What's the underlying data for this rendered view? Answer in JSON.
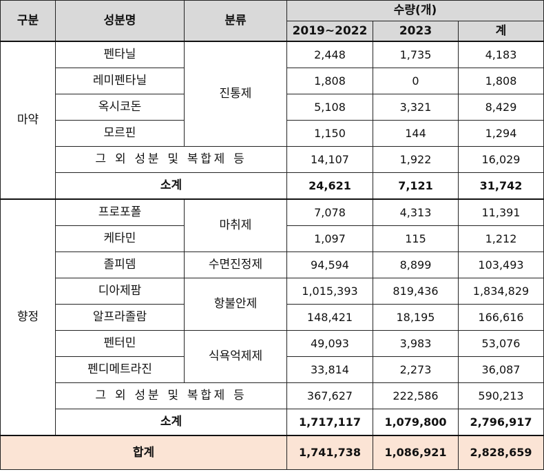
{
  "header": {
    "category": "구분",
    "ingredient": "성분명",
    "classification": "분류",
    "quantity": "수량(개)",
    "col_2019_2022": "2019~2022",
    "col_2023": "2023",
    "col_total": "계"
  },
  "narcotics": {
    "label": "마약",
    "class_analgesic": "진통제",
    "rows": [
      {
        "name": "펜타닐",
        "v1": "2,448",
        "v2": "1,735",
        "v3": "4,183"
      },
      {
        "name": "레미펜타닐",
        "v1": "1,808",
        "v2": "0",
        "v3": "1,808"
      },
      {
        "name": "옥시코돈",
        "v1": "5,108",
        "v2": "3,321",
        "v3": "8,429"
      },
      {
        "name": "모르핀",
        "v1": "1,150",
        "v2": "144",
        "v3": "1,294"
      }
    ],
    "other": {
      "name": "그 외 성분 및 복합제 등",
      "v1": "14,107",
      "v2": "1,922",
      "v3": "16,029"
    },
    "subtotal": {
      "label": "소계",
      "v1": "24,621",
      "v2": "7,121",
      "v3": "31,742"
    }
  },
  "psychotropics": {
    "label": "향정",
    "class_anesthetic": "마취제",
    "class_sedative": "수면진정제",
    "class_anxiolytic": "항불안제",
    "class_appetite": "식욕억제제",
    "rows": [
      {
        "name": "프로포폴",
        "v1": "7,078",
        "v2": "4,313",
        "v3": "11,391"
      },
      {
        "name": "케타민",
        "v1": "1,097",
        "v2": "115",
        "v3": "1,212"
      },
      {
        "name": "졸피뎀",
        "v1": "94,594",
        "v2": "8,899",
        "v3": "103,493"
      },
      {
        "name": "디아제팜",
        "v1": "1,015,393",
        "v2": "819,436",
        "v3": "1,834,829"
      },
      {
        "name": "알프라졸람",
        "v1": "148,421",
        "v2": "18,195",
        "v3": "166,616"
      },
      {
        "name": "펜터민",
        "v1": "49,093",
        "v2": "3,983",
        "v3": "53,076"
      },
      {
        "name": "펜디메트라진",
        "v1": "33,814",
        "v2": "2,273",
        "v3": "36,087"
      }
    ],
    "other": {
      "name": "그 외 성분 및 복합제 등",
      "v1": "367,627",
      "v2": "222,586",
      "v3": "590,213"
    },
    "subtotal": {
      "label": "소계",
      "v1": "1,717,117",
      "v2": "1,079,800",
      "v3": "2,796,917"
    }
  },
  "grand_total": {
    "label": "합계",
    "v1": "1,741,738",
    "v2": "1,086,921",
    "v3": "2,828,659"
  }
}
